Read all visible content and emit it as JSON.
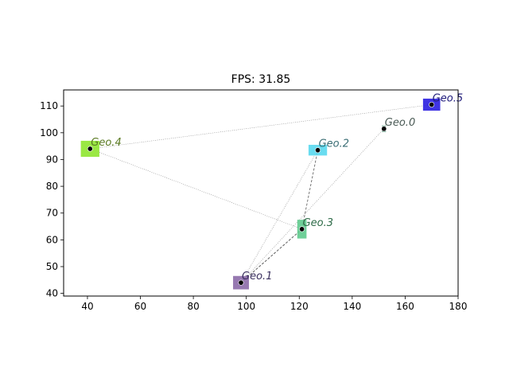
{
  "chart_data": {
    "type": "scatter",
    "title": "FPS: 31.85",
    "xlabel": "",
    "ylabel": "",
    "xlim": [
      31,
      180
    ],
    "ylim": [
      39,
      116
    ],
    "xticks": [
      40,
      60,
      80,
      100,
      120,
      140,
      160,
      180
    ],
    "yticks": [
      40,
      50,
      60,
      70,
      80,
      90,
      100,
      110
    ],
    "grid": false,
    "points": [
      {
        "label": "Geo.0",
        "x": 152,
        "y": 101.5,
        "color": "#6fa68f",
        "label_color": "#4a5a55",
        "box_w": 1.5,
        "box_h": 2.5
      },
      {
        "label": "Geo.1",
        "x": 98,
        "y": 44,
        "color": "#8c6aa9",
        "label_color": "#3a2f5e",
        "box_w": 6,
        "box_h": 5
      },
      {
        "label": "Geo.2",
        "x": 127,
        "y": 93.5,
        "color": "#59d8ee",
        "label_color": "#3b6e75",
        "box_w": 7,
        "box_h": 4
      },
      {
        "label": "Geo.3",
        "x": 121,
        "y": 64,
        "color": "#5fca8d",
        "label_color": "#2e6b48",
        "box_w": 3.5,
        "box_h": 7
      },
      {
        "label": "Geo.4",
        "x": 41,
        "y": 94,
        "color": "#8fe530",
        "label_color": "#5a7a22",
        "box_w": 7,
        "box_h": 6
      },
      {
        "label": "Geo.5",
        "x": 170,
        "y": 110.5,
        "color": "#2a1ee0",
        "label_color": "#1e1a7a",
        "box_w": 6.5,
        "box_h": 4.5
      }
    ],
    "edges": [
      {
        "from": "Geo.4",
        "to": "Geo.5",
        "style": "dotted"
      },
      {
        "from": "Geo.4",
        "to": "Geo.3",
        "style": "dotted"
      },
      {
        "from": "Geo.1",
        "to": "Geo.0",
        "style": "dotted"
      },
      {
        "from": "Geo.1",
        "to": "Geo.2",
        "style": "dotted"
      },
      {
        "from": "Geo.3",
        "to": "Geo.2",
        "style": "dashed"
      },
      {
        "from": "Geo.1",
        "to": "Geo.3",
        "style": "dashed"
      },
      {
        "from": "Geo.1",
        "to": "Geo.3",
        "style": "dashed"
      }
    ]
  }
}
